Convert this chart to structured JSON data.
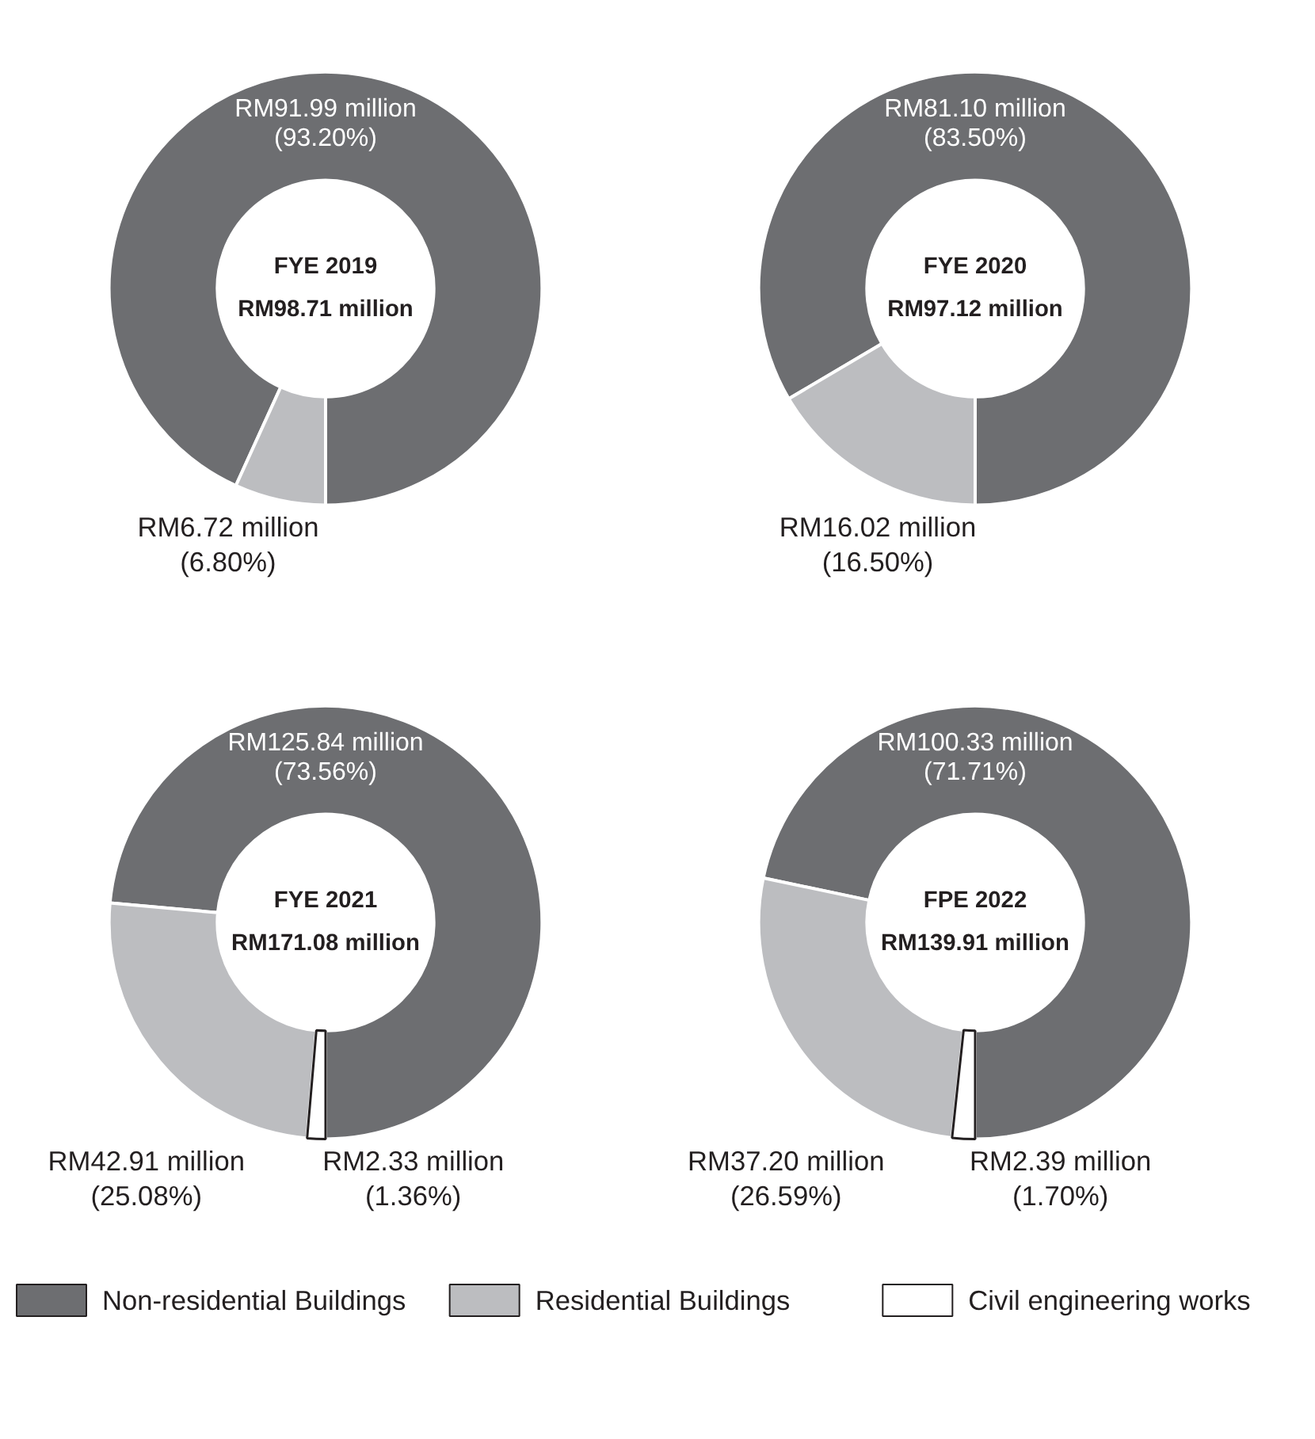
{
  "chart_data": [
    {
      "type": "donut",
      "title": "FYE 2019",
      "subtitle": "RM98.71 million",
      "categories": [
        "Non-residential Buildings",
        "Residential Buildings",
        "Civil engineering works"
      ],
      "values": [
        93.2,
        6.8,
        null
      ],
      "colors": [
        "#6d6e71",
        "#bcbdc0",
        "#ffffff"
      ],
      "value_labels": [
        "RM91.99 million\n(93.20%)",
        "RM6.72 million\n(6.80%)",
        null
      ],
      "legend": "bottom"
    },
    {
      "type": "donut",
      "title": "FYE 2020",
      "subtitle": "RM97.12 million",
      "categories": [
        null,
        null
      ],
      "values": [
        83.5,
        16.5
      ],
      "colors": [
        "#6d6e71",
        "#bcbdc0"
      ],
      "value_labels": [
        "RM81.10 million\n(83.50%)",
        "RM16.02 million\n(16.50%)"
      ]
    },
    {
      "type": "donut",
      "title": "FYE 2021",
      "subtitle": "RM171.08 million",
      "categories": [
        null,
        null,
        null
      ],
      "values": [
        73.56,
        25.08,
        1.36
      ],
      "colors": [
        "#6d6e71",
        "#bcbdc0",
        "#ffffff"
      ],
      "value_labels": [
        "RM125.84 million\n(73.56%)",
        "RM42.91 million\n(25.08%)",
        "RM2.33 million\n(1.36%)"
      ]
    },
    {
      "type": "donut",
      "title": "FPE 2022",
      "subtitle": "RM139.91 million",
      "categories": [
        null,
        null,
        null
      ],
      "values": [
        71.71,
        26.59,
        1.7
      ],
      "colors": [
        "#6d6e71",
        "#bcbdc0",
        "#ffffff"
      ],
      "value_labels": [
        "RM100.33 million\n(71.71%)",
        "RM37.20 million\n(26.59%)",
        "RM2.39 million\n(1.70%)"
      ]
    }
  ]
}
